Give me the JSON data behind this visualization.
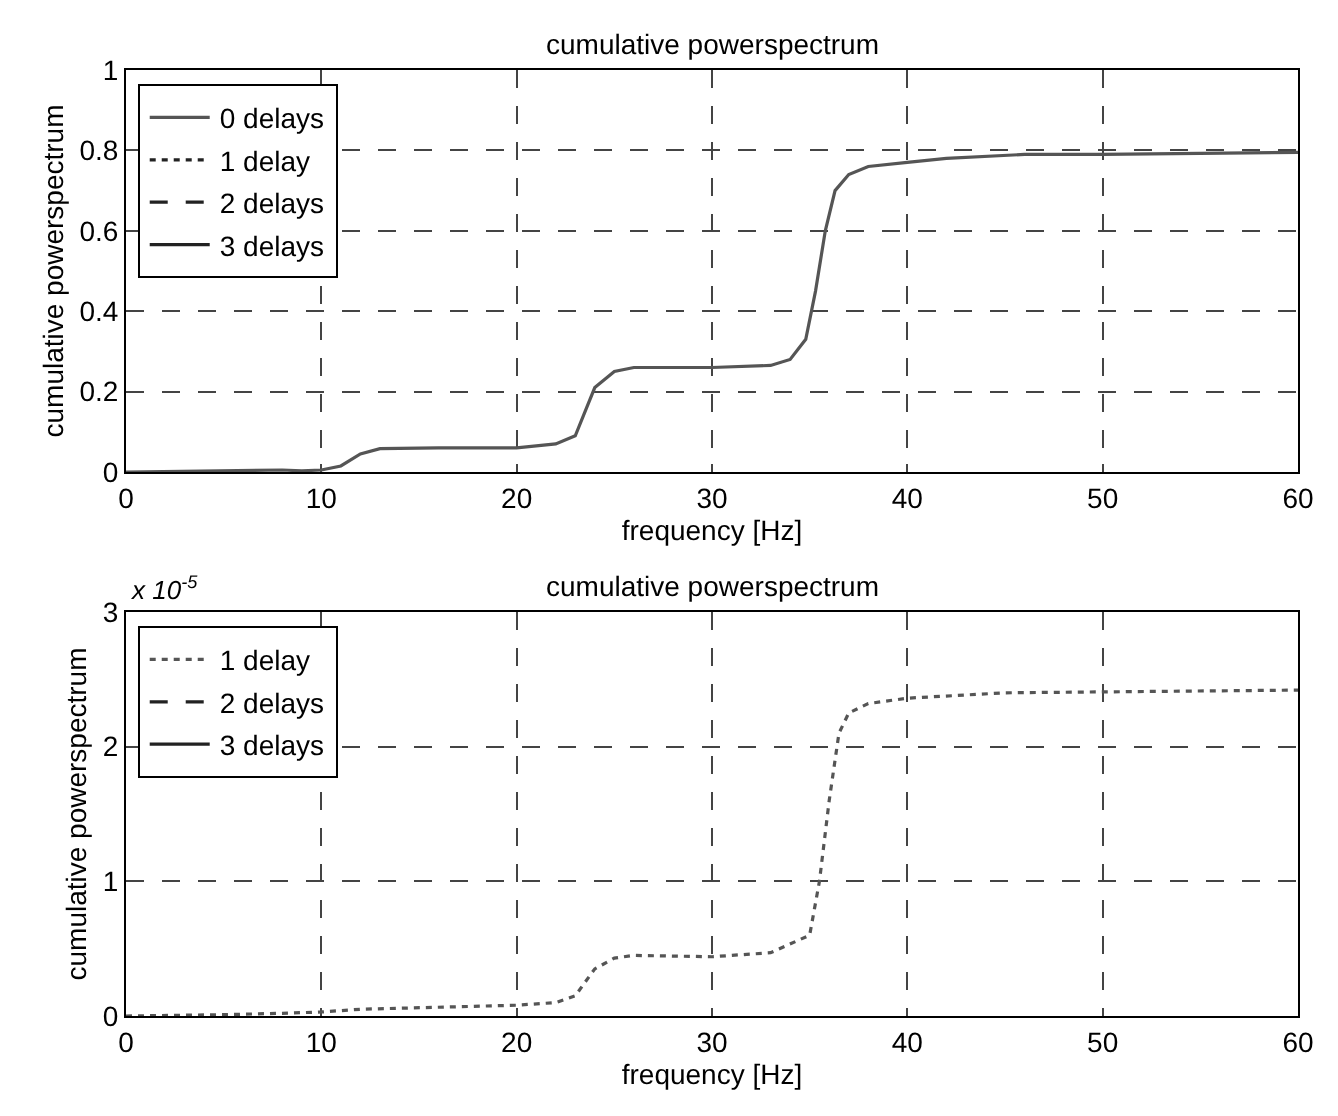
{
  "chart_data": [
    {
      "type": "line",
      "title": "cumulative powerspectrum",
      "xlabel": "frequency [Hz]",
      "ylabel": "cumulative powerspectrum",
      "x": [
        0,
        8,
        9,
        10,
        11,
        12,
        13,
        16,
        20,
        22,
        23,
        23.5,
        24,
        25,
        26,
        30,
        33,
        34,
        34.8,
        35.3,
        35.8,
        36.3,
        37,
        38,
        40,
        42,
        46,
        50,
        60
      ],
      "series": [
        {
          "name": "0 delays",
          "color": "#555555",
          "line_style": "solid",
          "values": [
            0,
            0.005,
            0.003,
            0.005,
            0.015,
            0.045,
            0.058,
            0.06,
            0.06,
            0.07,
            0.09,
            0.15,
            0.21,
            0.25,
            0.26,
            0.26,
            0.265,
            0.28,
            0.33,
            0.45,
            0.6,
            0.7,
            0.74,
            0.76,
            0.77,
            0.78,
            0.79,
            0.79,
            0.795
          ]
        },
        {
          "name": "1 delay",
          "color": "#222222",
          "line_style": "dotted",
          "values": [
            null,
            null,
            null,
            null,
            null,
            null,
            null,
            null,
            null,
            null,
            null,
            null,
            null,
            null,
            null,
            null,
            null,
            null,
            null,
            null,
            null,
            null,
            null,
            null,
            null,
            null,
            null,
            null,
            null
          ]
        },
        {
          "name": "2 delays",
          "color": "#222222",
          "line_style": "dashed",
          "values": [
            null,
            null,
            null,
            null,
            null,
            null,
            null,
            null,
            null,
            null,
            null,
            null,
            null,
            null,
            null,
            null,
            null,
            null,
            null,
            null,
            null,
            null,
            null,
            null,
            null,
            null,
            null,
            null,
            null
          ]
        },
        {
          "name": "3 delays",
          "color": "#222222",
          "line_style": "solid",
          "values": [
            null,
            null,
            null,
            null,
            null,
            null,
            null,
            null,
            null,
            null,
            null,
            null,
            null,
            null,
            null,
            null,
            null,
            null,
            null,
            null,
            null,
            null,
            null,
            null,
            null,
            null,
            null,
            null,
            null
          ]
        }
      ],
      "xlim": [
        0,
        60
      ],
      "xticks": [
        0,
        10,
        20,
        30,
        40,
        50,
        60
      ],
      "ylim": [
        0,
        1
      ],
      "yticks": [
        0,
        0.2,
        0.4,
        0.6,
        0.8,
        1
      ],
      "grid": true,
      "legend": "top left"
    },
    {
      "type": "line",
      "title": "cumulative powerspectrum",
      "xlabel": "frequency [Hz]",
      "ylabel": "cumulative powerspectrum",
      "x": [
        0,
        5,
        8,
        10,
        12,
        20,
        22,
        23,
        24,
        25,
        26,
        30,
        33,
        35,
        35.5,
        36,
        36.5,
        37,
        38,
        40,
        45,
        60
      ],
      "series": [
        {
          "name": "1 delay",
          "color": "#555555",
          "line_style": "dotted",
          "values": [
            0,
            0.01,
            0.02,
            0.03,
            0.05,
            0.08,
            0.1,
            0.15,
            0.35,
            0.43,
            0.45,
            0.44,
            0.47,
            0.6,
            1.0,
            1.6,
            2.1,
            2.25,
            2.32,
            2.36,
            2.4,
            2.42
          ]
        },
        {
          "name": "2 delays",
          "color": "#222222",
          "line_style": "dashed",
          "values": [
            null,
            null,
            null,
            null,
            null,
            null,
            null,
            null,
            null,
            null,
            null,
            null,
            null,
            null,
            null,
            null,
            null,
            null,
            null,
            null,
            null,
            null
          ]
        },
        {
          "name": "3 delays",
          "color": "#222222",
          "line_style": "solid",
          "values": [
            null,
            null,
            null,
            null,
            null,
            null,
            null,
            null,
            null,
            null,
            null,
            null,
            null,
            null,
            null,
            null,
            null,
            null,
            null,
            null,
            null,
            null
          ]
        }
      ],
      "xlim": [
        0,
        60
      ],
      "xticks": [
        0,
        10,
        20,
        30,
        40,
        50,
        60
      ],
      "ylim": [
        0,
        3
      ],
      "yticks": [
        0,
        1,
        2,
        3
      ],
      "grid": true,
      "legend": "top left",
      "annotations": [
        "x 10$^{-5}$"
      ]
    }
  ]
}
